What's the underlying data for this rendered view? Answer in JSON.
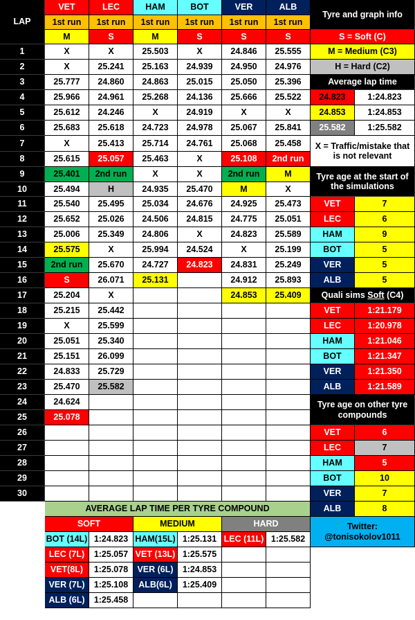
{
  "lap_header": "LAP",
  "colors": {
    "VET": "#ff0000",
    "LEC": "#ff0000",
    "HAM": "#66ffff",
    "BOT": "#66ffff",
    "VER": "#00205b",
    "ALB": "#00205b",
    "soft": "#ff0000",
    "medium": "#ffff00",
    "hard": "#c0c0c0",
    "run_label": "#ffc000",
    "second_run": "#00b050",
    "green_header": "#a9d18e"
  },
  "drivers": [
    {
      "code": "VET",
      "run": "1st run",
      "tyre": "M"
    },
    {
      "code": "LEC",
      "run": "1st run",
      "tyre": "S"
    },
    {
      "code": "HAM",
      "run": "1st run",
      "tyre": "M"
    },
    {
      "code": "BOT",
      "run": "1st run",
      "tyre": "S"
    },
    {
      "code": "VER",
      "run": "1st run",
      "tyre": "S"
    },
    {
      "code": "ALB",
      "run": "1st run",
      "tyre": "S"
    }
  ],
  "laps": [
    "1",
    "2",
    "3",
    "4",
    "5",
    "6",
    "7",
    "8",
    "9",
    "10",
    "11",
    "12",
    "13",
    "14",
    "15",
    "16",
    "17",
    "18",
    "19",
    "20",
    "21",
    "22",
    "23",
    "24",
    "25",
    "26",
    "27",
    "28",
    "29",
    "30"
  ],
  "lap_table": [
    [
      "X",
      "X",
      "25.503",
      "X",
      "24.846",
      "25.555"
    ],
    [
      "X",
      "25.241",
      "25.163",
      "24.939",
      "24.950",
      "24.976"
    ],
    [
      "25.777",
      "24.860",
      "24.863",
      "25.015",
      "25.050",
      "25.396"
    ],
    [
      "25.966",
      "24.961",
      "25.268",
      "24.136",
      "25.666",
      "25.522"
    ],
    [
      "25.612",
      "24.246",
      "X",
      "24.919",
      "X",
      "X"
    ],
    [
      "25.683",
      "25.618",
      "24.723",
      "24.978",
      "25.067",
      "25.841"
    ],
    [
      "X",
      "25.413",
      "25.714",
      "24.761",
      "25.068",
      "25.458"
    ],
    [
      "25.615",
      "25.057",
      "25.463",
      "X",
      "25.108",
      "2nd run"
    ],
    [
      "25.401",
      "2nd run",
      "X",
      "X",
      "2nd run",
      "M"
    ],
    [
      "25.494",
      "H",
      "24.935",
      "25.470",
      "M",
      "X"
    ],
    [
      "25.540",
      "25.495",
      "25.034",
      "24.676",
      "24.925",
      "25.473"
    ],
    [
      "25.652",
      "25.026",
      "24.506",
      "24.815",
      "24.775",
      "25.051"
    ],
    [
      "25.006",
      "25.349",
      "24.806",
      "X",
      "24.823",
      "25.589"
    ],
    [
      "25.575",
      "X",
      "25.994",
      "24.524",
      "X",
      "25.199"
    ],
    [
      "2nd run",
      "25.670",
      "24.727",
      "24.823",
      "24.831",
      "25.249"
    ],
    [
      "S",
      "26.071",
      "25.131",
      "",
      "24.912",
      "25.893"
    ],
    [
      "25.204",
      "X",
      "",
      "",
      "24.853",
      "25.409"
    ],
    [
      "25.215",
      "25.442",
      "",
      "",
      "",
      ""
    ],
    [
      "X",
      "25.599",
      "",
      "",
      "",
      ""
    ],
    [
      "25.051",
      "25.340",
      "",
      "",
      "",
      ""
    ],
    [
      "25.151",
      "26.099",
      "",
      "",
      "",
      ""
    ],
    [
      "24.833",
      "25.729",
      "",
      "",
      "",
      ""
    ],
    [
      "25.470",
      "25.582",
      "",
      "",
      "",
      ""
    ],
    [
      "24.624",
      "",
      "",
      "",
      "",
      ""
    ],
    [
      "25.078",
      "",
      "",
      "",
      "",
      ""
    ],
    [
      "",
      "",
      "",
      "",
      "",
      ""
    ],
    [
      "",
      "",
      "",
      "",
      "",
      ""
    ],
    [
      "",
      "",
      "",
      "",
      "",
      ""
    ],
    [
      "",
      "",
      "",
      "",
      "",
      ""
    ],
    [
      "",
      "",
      "",
      "",
      "",
      ""
    ]
  ],
  "side": {
    "title": "Tyre and graph info",
    "soft_label": "S = Soft (C)",
    "medium_label": "M = Medium (C3)",
    "hard_label": "H = Hard (C2)",
    "avg_title": "Average lap time",
    "avg": [
      {
        "value": "24.823",
        "time": "1:24.823"
      },
      {
        "value": "24.853",
        "time": "1:24.853"
      },
      {
        "value": "25.582",
        "time": "1:25.582"
      }
    ],
    "note": "X = Traffic/mistake that is not relevant",
    "age_title": "Tyre age at the start of the simulations",
    "age": [
      {
        "code": "VET",
        "value": "7"
      },
      {
        "code": "LEC",
        "value": "6"
      },
      {
        "code": "HAM",
        "value": "9"
      },
      {
        "code": "BOT",
        "value": "5"
      },
      {
        "code": "VER",
        "value": "5"
      },
      {
        "code": "ALB",
        "value": "5"
      }
    ],
    "quali_title_pre": "Quali sims ",
    "quali_title_u": "Soft",
    "quali_title_post": " (C4)",
    "quali": [
      {
        "code": "VET",
        "time": "1:21.179"
      },
      {
        "code": "LEC",
        "time": "1:20.978"
      },
      {
        "code": "HAM",
        "time": "1:21.046"
      },
      {
        "code": "BOT",
        "time": "1:21.347"
      },
      {
        "code": "VER",
        "time": "1:21.350"
      },
      {
        "code": "ALB",
        "time": "1:21.589"
      }
    ],
    "other_title": "Tyre age on other tyre compounds",
    "other": [
      {
        "code": "VET",
        "value": "6"
      },
      {
        "code": "LEC",
        "value": "7"
      },
      {
        "code": "HAM",
        "value": "5"
      },
      {
        "code": "BOT",
        "value": "10"
      },
      {
        "code": "VER",
        "value": "7"
      },
      {
        "code": "ALB",
        "value": "8"
      }
    ],
    "twitter": "Twitter: @tonisokolov1011"
  },
  "avg_per_compound": {
    "title": "AVERAGE LAP TIME PER TYRE COMPOUND",
    "soft_header": "SOFT",
    "medium_header": "MEDIUM",
    "hard_header": "HARD",
    "soft": [
      {
        "label": "BOT (14L)",
        "time": "1:24.823"
      },
      {
        "label": "LEC (7L)",
        "time": "1:25.057"
      },
      {
        "label": "VET(8L)",
        "time": "1:25.078"
      },
      {
        "label": "VER (7L)",
        "time": "1:25.108"
      },
      {
        "label": "ALB (6L)",
        "time": "1:25.458"
      }
    ],
    "medium": [
      {
        "label": "HAM(15L)",
        "time": "1:25.131"
      },
      {
        "label": "VET (13L)",
        "time": "1:25.575"
      },
      {
        "label": "VER (6L)",
        "time": "1:24.853"
      },
      {
        "label": "ALB(6L)",
        "time": "1:25.409"
      }
    ],
    "hard": [
      {
        "label": "LEC (11L)",
        "time": "1:25.582"
      }
    ]
  }
}
